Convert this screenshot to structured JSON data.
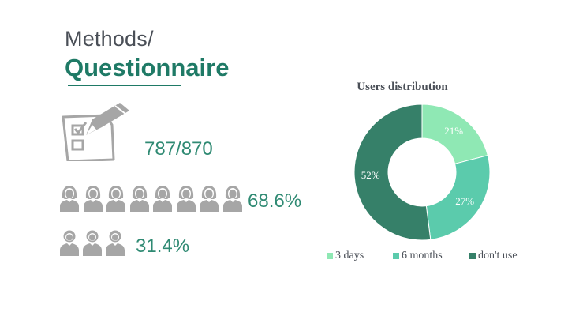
{
  "header": {
    "line1": "Methods/",
    "line2": "Questionnaire"
  },
  "stats": {
    "responses": "787/870",
    "female_pct": "68.6%",
    "male_pct": "31.4%"
  },
  "icons": {
    "questionnaire": "clipboard-pencil-icon",
    "female": "female-person-icon",
    "male": "male-person-icon"
  },
  "colors": {
    "accent": "#1f7a66",
    "stat_text": "#2f8a73",
    "icon_gray": "#a6a6a6"
  },
  "chart_data": {
    "type": "donut",
    "title": "Users distribution",
    "series": [
      {
        "name": "3 days",
        "value": 21,
        "label": "21%",
        "color": "#8fe8b4"
      },
      {
        "name": "6 months",
        "value": 27,
        "label": "27%",
        "color": "#5bcbac"
      },
      {
        "name": "don't use",
        "value": 52,
        "label": "52%",
        "color": "#368069"
      }
    ],
    "legend_position": "bottom"
  }
}
